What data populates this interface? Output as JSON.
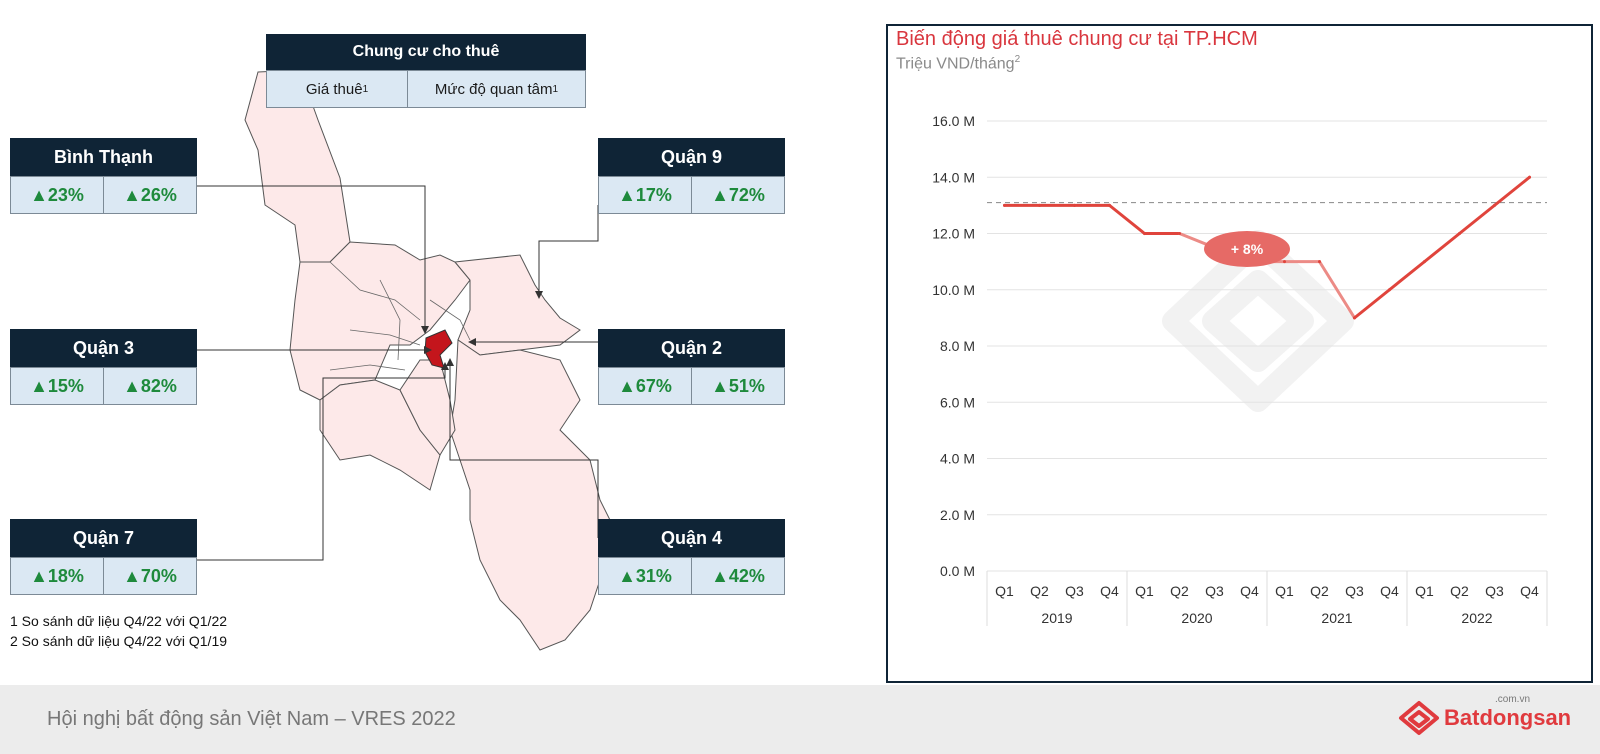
{
  "legend": {
    "title": "Chung cư cho thuê",
    "col_price": "Giá thuê",
    "col_interest": "Mức độ quan tâm",
    "col_sup": "1"
  },
  "districts": [
    {
      "name": "Bình Thạnh",
      "price": "▲23%",
      "interest": "▲26%"
    },
    {
      "name": "Quận 9",
      "price": "▲17%",
      "interest": "▲72%"
    },
    {
      "name": "Quận 3",
      "price": "▲15%",
      "interest": "▲82%"
    },
    {
      "name": "Quận 2",
      "price": "▲67%",
      "interest": "▲51%"
    },
    {
      "name": "Quận 7",
      "price": "▲18%",
      "interest": "▲70%"
    },
    {
      "name": "Quận 4",
      "price": "▲31%",
      "interest": "▲42%"
    }
  ],
  "footnotes": {
    "note1": "1 So sánh dữ liệu Q4/22 với Q1/22",
    "note2": "2 So sánh dữ liệu Q4/22 với Q1/19"
  },
  "chart_data": {
    "type": "line",
    "title": "Biến động giá thuê chung cư tại TP.HCM",
    "subtitle": "Triệu VND/tháng",
    "subtitle_sup": "2",
    "categories": [
      "Q1",
      "Q2",
      "Q3",
      "Q4",
      "Q1",
      "Q2",
      "Q3",
      "Q4",
      "Q1",
      "Q2",
      "Q3",
      "Q4",
      "Q1",
      "Q2",
      "Q3",
      "Q4"
    ],
    "years": [
      "2019",
      "2020",
      "2021",
      "2022"
    ],
    "values": [
      13.0,
      13.0,
      13.0,
      13.0,
      12.0,
      12.0,
      11.5,
      11.0,
      11.0,
      11.0,
      9.0,
      10.0,
      11.0,
      12.0,
      13.0,
      14.0
    ],
    "ylim": [
      0,
      16
    ],
    "yticks": [
      "0.0 M",
      "2.0 M",
      "4.0 M",
      "6.0 M",
      "8.0 M",
      "10.0 M",
      "12.0 M",
      "14.0 M",
      "16.0 M"
    ],
    "reference_line": 13.1,
    "annotation": "+ 8%",
    "line_color": "#e0443c",
    "grid": true
  },
  "footer": {
    "event": "Hội nghị bất động sản Việt Nam – VRES 2022",
    "brand": "Batdongsan",
    "brand_tld": ".com.vn"
  },
  "colors": {
    "navy": "#0f2436",
    "green": "#1e8a3c",
    "red": "#d9363e",
    "map_fill": "#fbe6e6"
  }
}
